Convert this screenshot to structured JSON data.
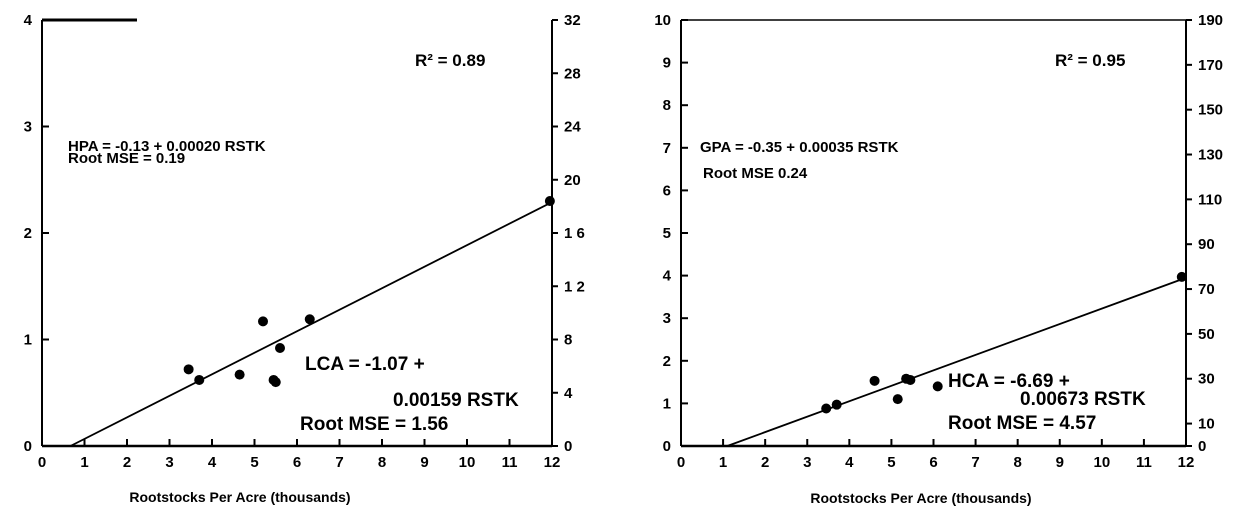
{
  "chart_data": [
    {
      "type": "scatter",
      "title": "",
      "xlabel": "Rootstocks Per Acre (thousands)",
      "ylabel": "",
      "xlim": [
        0,
        12
      ],
      "ylim": [
        0,
        4
      ],
      "y2lim": [
        0,
        32
      ],
      "x_ticks": [
        "0",
        "1",
        "2",
        "3",
        "4",
        "5",
        "6",
        "7",
        "8",
        "9",
        "10",
        "11",
        "12"
      ],
      "y_ticks": [
        "0",
        "1",
        "2",
        "3",
        "4"
      ],
      "y2_ticks": [
        "0",
        "4",
        "8",
        "1 2",
        "1 6",
        "20",
        "24",
        "28",
        "32"
      ],
      "points": [
        {
          "x": 3.45,
          "y": 0.72
        },
        {
          "x": 3.7,
          "y": 0.62
        },
        {
          "x": 4.65,
          "y": 0.67
        },
        {
          "x": 5.2,
          "y": 1.17
        },
        {
          "x": 5.45,
          "y": 0.62
        },
        {
          "x": 5.5,
          "y": 0.6
        },
        {
          "x": 5.6,
          "y": 0.92
        },
        {
          "x": 6.3,
          "y": 1.19
        },
        {
          "x": 11.95,
          "y": 2.3
        }
      ],
      "fit_line": {
        "x": [
          0.67,
          11.95
        ],
        "y": [
          0.0,
          2.28
        ]
      },
      "r_squared": "R² = 0.89",
      "equation_top": "HPA = -0.13 + 0.00020 RSTK",
      "root_mse_top": "Root MSE = 0.19",
      "equation_line1": "LCA = -1.07 +",
      "equation_line2": "0.00159 RSTK",
      "root_mse_bottom": "Root MSE = 1.56",
      "grid": false
    },
    {
      "type": "scatter",
      "title": "",
      "xlabel": "Rootstocks Per Acre (thousands)",
      "ylabel": "",
      "xlim": [
        0,
        12
      ],
      "ylim": [
        0,
        10
      ],
      "y2lim": [
        0,
        190
      ],
      "x_ticks": [
        "0",
        "1",
        "2",
        "3",
        "4",
        "5",
        "6",
        "7",
        "8",
        "9",
        "10",
        "11",
        "12"
      ],
      "y_ticks": [
        "0",
        "1",
        "2",
        "3",
        "4",
        "5",
        "6",
        "7",
        "8",
        "9",
        "10"
      ],
      "y2_ticks": [
        "0",
        "10",
        "30",
        "50",
        "70",
        "90",
        "110",
        "130",
        "150",
        "170",
        "190"
      ],
      "points": [
        {
          "x": 3.45,
          "y": 0.88
        },
        {
          "x": 3.7,
          "y": 0.97
        },
        {
          "x": 4.6,
          "y": 1.53
        },
        {
          "x": 5.15,
          "y": 1.1
        },
        {
          "x": 5.35,
          "y": 1.58
        },
        {
          "x": 5.45,
          "y": 1.55
        },
        {
          "x": 6.1,
          "y": 1.4
        },
        {
          "x": 11.9,
          "y": 3.97
        }
      ],
      "fit_line": {
        "x": [
          1.1,
          12.0
        ],
        "y": [
          0.0,
          3.95
        ]
      },
      "r_squared": "R² = 0.95",
      "equation_top": "GPA = -0.35 + 0.00035 RSTK",
      "root_mse_top": "Root MSE    0.24",
      "equation_line1": "HCA = -6.69 +",
      "equation_line2": "0.00673 RSTK",
      "root_mse_bottom": "Root MSE = 4.57",
      "grid": false
    }
  ]
}
